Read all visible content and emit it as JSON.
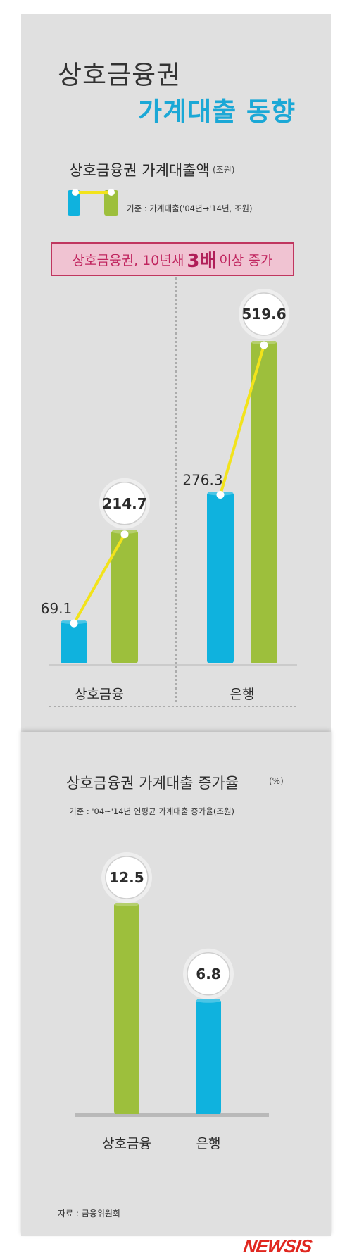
{
  "header": {
    "title_line1": "상호금융권",
    "title_line2": "가계대출 동향"
  },
  "chart1": {
    "title": "상호금융권 가계대출액",
    "unit": "(조원)",
    "note": "기준 : 가계대출('04년→'14년, 조원)",
    "banner": {
      "prefix": "상호금융권, 10년새",
      "strong": "3배",
      "suffix": "이상 증가"
    }
  },
  "chart2": {
    "title": "상호금융권 가계대출 증가율",
    "unit": "(%)",
    "note": "기준 : '04~'14년 연평균 가계대출 증가율(조원)"
  },
  "footer": {
    "source": "자료 : 금융위원회",
    "logo": "NEWSIS"
  },
  "colors": {
    "panel": "#e0e0e0",
    "title_accent": "#1ba8d6",
    "bar_2004": "#0fb2de",
    "bar_2014": "#9dbf3c",
    "connector": "#f2e31b",
    "banner_border": "#c0365f",
    "banner_text": "#c0245e",
    "logo": "#e0271f"
  },
  "chart_data": [
    {
      "type": "bar",
      "title": "상호금융권 가계대출액",
      "unit": "조원",
      "categories": [
        "상호금융",
        "은행"
      ],
      "series": [
        {
          "name": "'04년",
          "values": [
            69.1,
            276.3
          ]
        },
        {
          "name": "'14년",
          "values": [
            214.7,
            519.6
          ]
        }
      ],
      "value_labels": [
        [
          "69.1",
          "214.7"
        ],
        [
          "276.3",
          "519.6"
        ]
      ],
      "ylim": [
        0,
        560
      ],
      "grid": false
    },
    {
      "type": "bar",
      "title": "상호금융권 가계대출 증가율",
      "unit": "%",
      "categories": [
        "상호금융",
        "은행"
      ],
      "values": [
        12.5,
        6.8
      ],
      "value_labels": [
        "12.5",
        "6.8"
      ],
      "ylim": [
        0,
        14
      ],
      "grid": false
    }
  ]
}
